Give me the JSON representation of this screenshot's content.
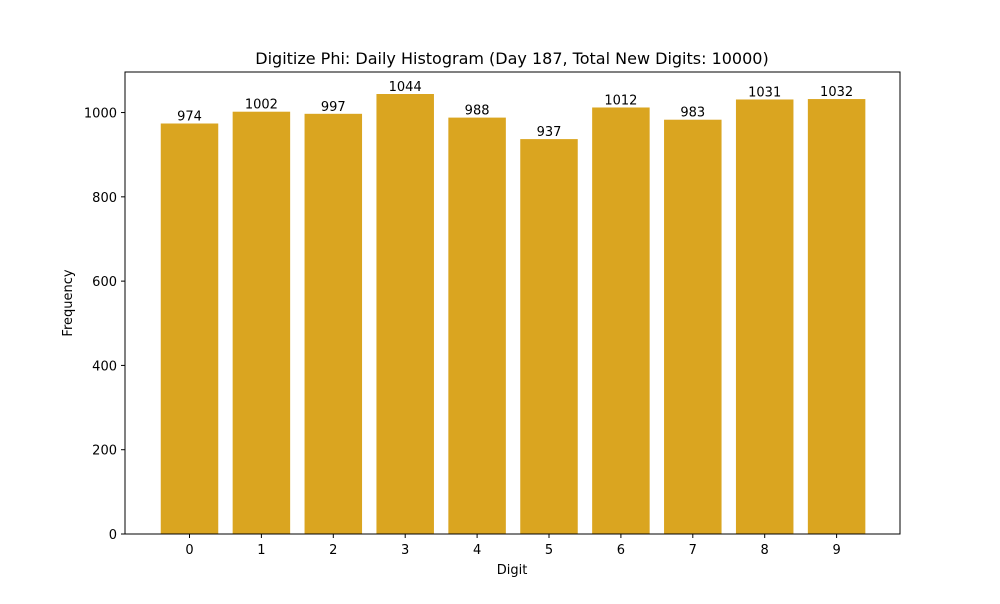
{
  "chart_data": {
    "type": "bar",
    "title": "Digitize Phi: Daily Histogram (Day 187, Total New Digits: 10000)",
    "xlabel": "Digit",
    "ylabel": "Frequency",
    "categories": [
      "0",
      "1",
      "2",
      "3",
      "4",
      "5",
      "6",
      "7",
      "8",
      "9"
    ],
    "values": [
      974,
      1002,
      997,
      1044,
      988,
      937,
      1012,
      983,
      1031,
      1032
    ],
    "data_labels": [
      "974",
      "1002",
      "997",
      "1044",
      "988",
      "937",
      "1012",
      "983",
      "1031",
      "1032"
    ],
    "yticks": [
      0,
      200,
      400,
      600,
      800,
      1000
    ],
    "ylim": [
      0,
      1096.2
    ],
    "grid": false,
    "legend": null,
    "bar_color": "#DAA520"
  }
}
